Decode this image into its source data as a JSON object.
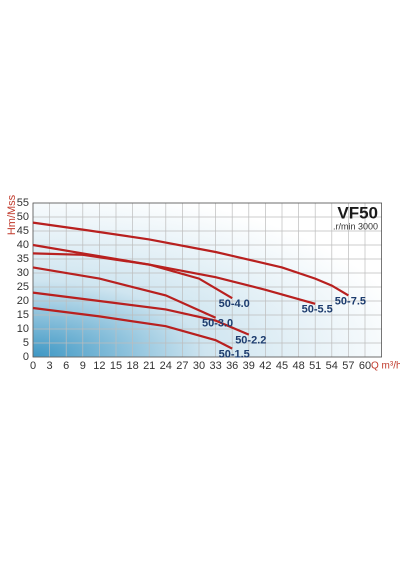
{
  "chart_data": {
    "type": "line",
    "title": "VF50",
    "subtitle": ".r/min 3000",
    "x_label": "Q m³/h",
    "y_label": "Hm/Mss",
    "xlim": [
      0,
      63
    ],
    "ylim": [
      0,
      55
    ],
    "xticks": [
      0,
      3,
      6,
      9,
      12,
      15,
      18,
      21,
      24,
      27,
      30,
      33,
      36,
      39,
      42,
      45,
      48,
      51,
      54,
      57,
      60
    ],
    "yticks": [
      0,
      5,
      10,
      15,
      20,
      25,
      30,
      35,
      40,
      45,
      50,
      55
    ],
    "grid": true,
    "line_color": "#b8201f",
    "label_color": "#1d3c6e",
    "series": [
      {
        "name": "50-7.5",
        "x": [
          0,
          9,
          21,
          33,
          45,
          51,
          54,
          57
        ],
        "values": [
          48,
          45.5,
          42,
          37.5,
          32,
          28,
          25.5,
          22
        ]
      },
      {
        "name": "50-5.5",
        "x": [
          0,
          9,
          21,
          33,
          42,
          51
        ],
        "values": [
          40,
          37,
          33,
          28.5,
          24,
          19
        ]
      },
      {
        "name": "50-4.0",
        "x": [
          0,
          9,
          21,
          30,
          36
        ],
        "values": [
          37,
          36.5,
          33,
          28,
          21
        ]
      },
      {
        "name": "50-3.0",
        "x": [
          0,
          12,
          24,
          33
        ],
        "values": [
          32,
          28,
          22,
          14
        ]
      },
      {
        "name": "50-2.2",
        "x": [
          0,
          12,
          24,
          33,
          39
        ],
        "values": [
          23,
          20,
          17,
          13,
          8
        ]
      },
      {
        "name": "50-1.5",
        "x": [
          0,
          12,
          24,
          33,
          36
        ],
        "values": [
          17.5,
          14.5,
          11,
          6,
          3
        ]
      }
    ]
  }
}
